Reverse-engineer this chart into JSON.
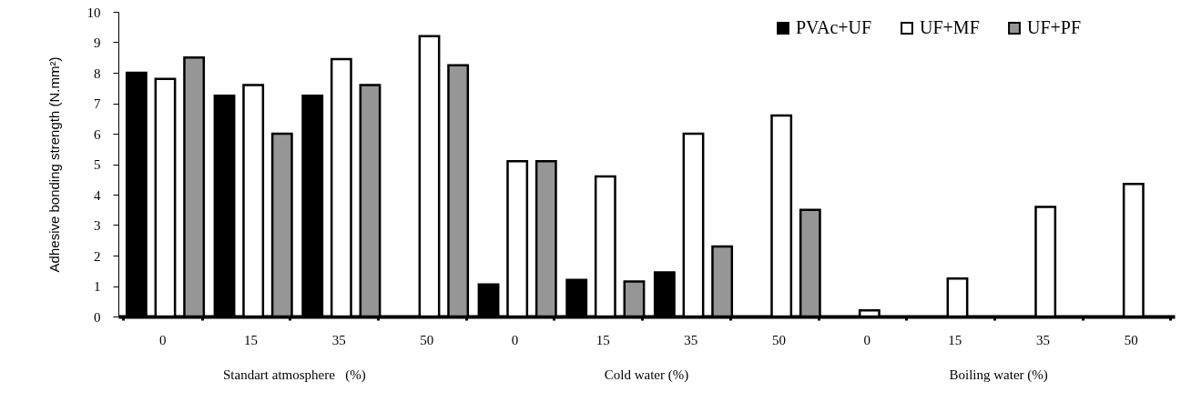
{
  "chart_data": {
    "type": "bar",
    "ylabel": "Adhesive bonding strength (N.mm²)",
    "categories": [
      "0",
      "15",
      "35",
      "50",
      "0",
      "15",
      "35",
      "50",
      "0",
      "15",
      "35",
      "50"
    ],
    "series": [
      {
        "name": "PVAc+UF",
        "color": "#000000",
        "values": [
          8.0,
          7.25,
          7.25,
          null,
          1.05,
          1.2,
          1.45,
          null,
          null,
          null,
          null,
          null
        ]
      },
      {
        "name": "UF+MF",
        "color": "#ffffff",
        "values": [
          7.8,
          7.6,
          8.45,
          9.2,
          5.1,
          4.6,
          6.0,
          6.6,
          0.2,
          1.25,
          3.6,
          4.35
        ]
      },
      {
        "name": "UF+PF",
        "color": "#969696",
        "values": [
          8.5,
          6.0,
          7.6,
          8.25,
          5.1,
          1.15,
          2.3,
          3.5,
          null,
          null,
          null,
          null
        ]
      }
    ],
    "ylim": [
      0,
      10
    ],
    "yticks": [
      0,
      1,
      2,
      3,
      4,
      5,
      6,
      7,
      8,
      9,
      10
    ],
    "grid": false,
    "legend": "top right",
    "annotations": [
      "Standart atmosphere   (%)",
      "Cold water (%)",
      "Boiling water (%)"
    ]
  }
}
